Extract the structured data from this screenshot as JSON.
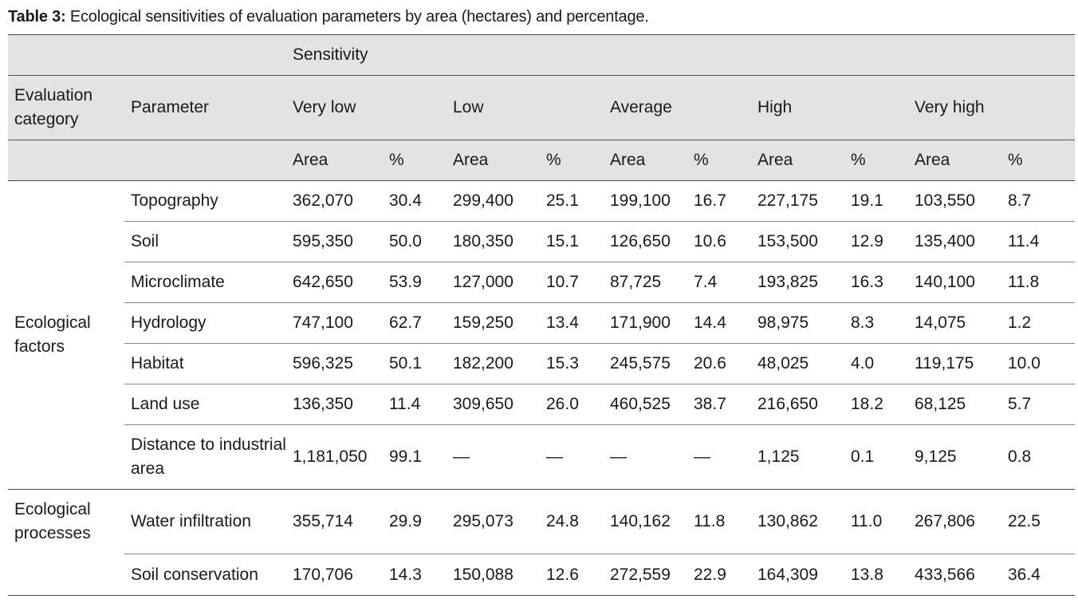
{
  "caption": {
    "label": "Table 3:",
    "text": "Ecological sensitivities of evaluation parameters by area (hectares) and percentage."
  },
  "header": {
    "sensitivity": "Sensitivity",
    "evaluation_category": "Evaluation category",
    "parameter": "Parameter",
    "levels": [
      "Very low",
      "Low",
      "Average",
      "High",
      "Very high"
    ],
    "area": "Area",
    "percent": "%"
  },
  "groups": [
    {
      "category": "Ecological factors",
      "rows": [
        {
          "parameter": "Topography",
          "values": [
            "362,070",
            "30.4",
            "299,400",
            "25.1",
            "199,100",
            "16.7",
            "227,175",
            "19.1",
            "103,550",
            "8.7"
          ]
        },
        {
          "parameter": "Soil",
          "values": [
            "595,350",
            "50.0",
            "180,350",
            "15.1",
            "126,650",
            "10.6",
            "153,500",
            "12.9",
            "135,400",
            "11.4"
          ]
        },
        {
          "parameter": "Microclimate",
          "values": [
            "642,650",
            "53.9",
            "127,000",
            "10.7",
            "87,725",
            "7.4",
            "193,825",
            "16.3",
            "140,100",
            "11.8"
          ]
        },
        {
          "parameter": "Hydrology",
          "values": [
            "747,100",
            "62.7",
            "159,250",
            "13.4",
            "171,900",
            "14.4",
            "98,975",
            "8.3",
            "14,075",
            "1.2"
          ]
        },
        {
          "parameter": "Habitat",
          "values": [
            "596,325",
            "50.1",
            "182,200",
            "15.3",
            "245,575",
            "20.6",
            "48,025",
            "4.0",
            "119,175",
            "10.0"
          ]
        },
        {
          "parameter": "Land use",
          "values": [
            "136,350",
            "11.4",
            "309,650",
            "26.0",
            "460,525",
            "38.7",
            "216,650",
            "18.2",
            "68,125",
            "5.7"
          ]
        },
        {
          "parameter": "Distance to industrial area",
          "values": [
            "1,181,050",
            "99.1",
            "—",
            "—",
            "—",
            "—",
            "1,125",
            "0.1",
            "9,125",
            "0.8"
          ]
        }
      ]
    },
    {
      "category": "Ecological processes",
      "rows": [
        {
          "parameter": "Water infiltration",
          "values": [
            "355,714",
            "29.9",
            "295,073",
            "24.8",
            "140,162",
            "11.8",
            "130,862",
            "11.0",
            "267,806",
            "22.5"
          ]
        },
        {
          "parameter": "Soil conservation",
          "values": [
            "170,706",
            "14.3",
            "150,088",
            "12.6",
            "272,559",
            "22.9",
            "164,309",
            "13.8",
            "433,566",
            "36.4"
          ]
        }
      ]
    }
  ]
}
